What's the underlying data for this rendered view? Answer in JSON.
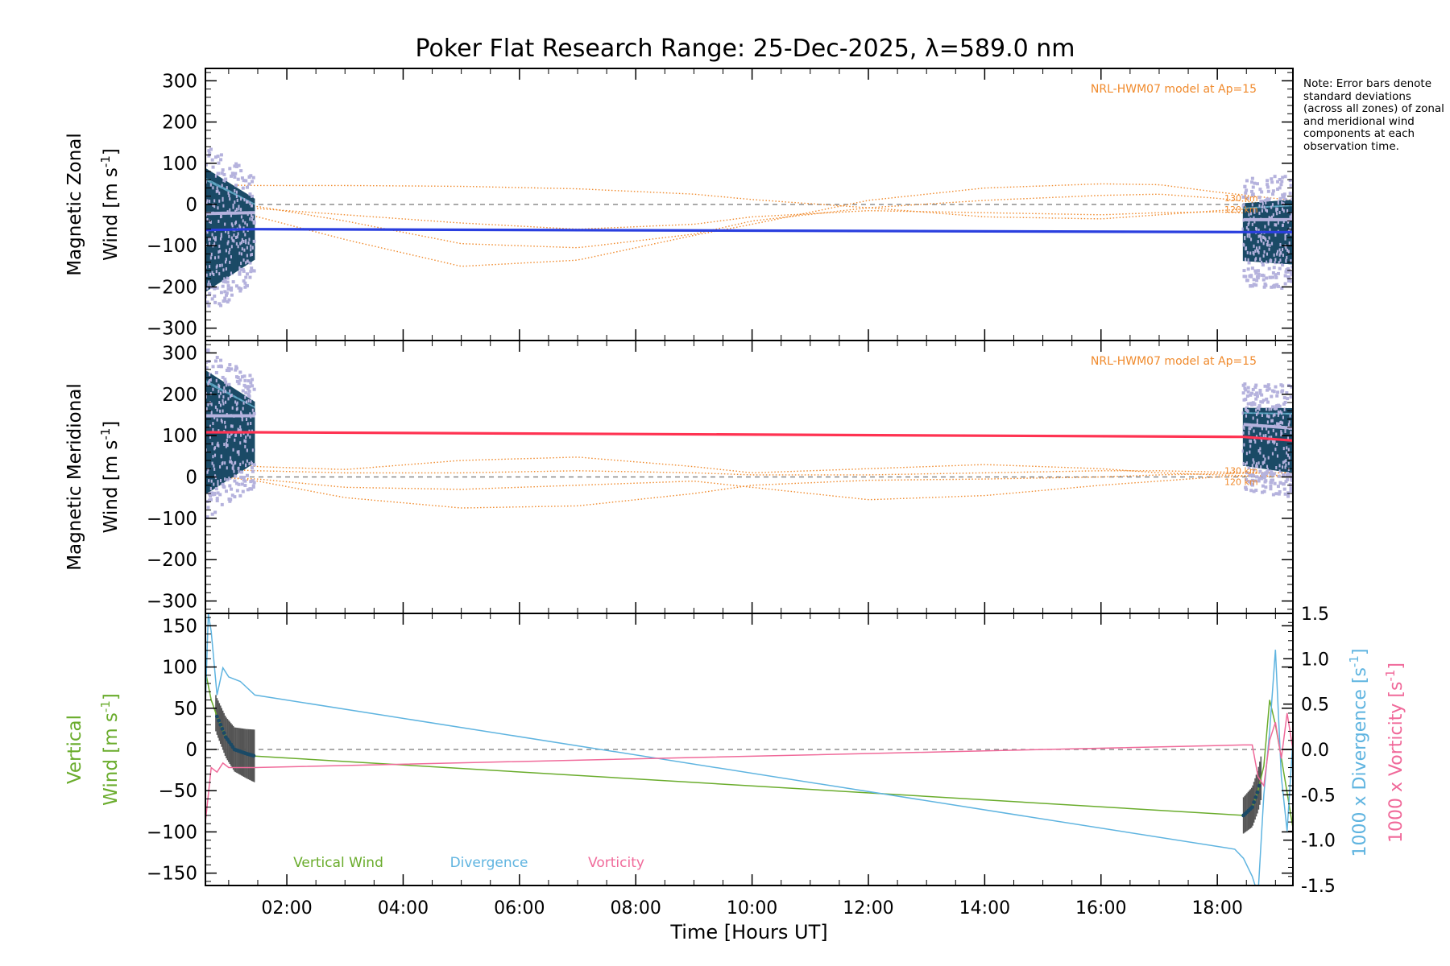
{
  "title": "Poker Flat Research Range: 25-Dec-2025, λ=589.0 nm",
  "note": "Note: Error bars denote standard deviations (across all zones) of zonal and meridional wind components at each observation time.",
  "colors": {
    "model": "#f08a2c",
    "zonal": "#2a3fdf",
    "meridional": "#ff3352",
    "vertical": "#6aac2c",
    "divergence": "#5fb4e0",
    "vorticity": "#f06a9a",
    "errorbar": "#1b4a66",
    "scatter": "#b5b2dd",
    "fine": "#7fd0ee"
  },
  "chart_data": [
    {
      "type": "line",
      "panel": "zonal",
      "ylabel_line1": "Magnetic Zonal",
      "ylabel_line2": "Wind [m s",
      "ylabel_sup": "-1",
      "ylabel_close": "]",
      "ylim": [
        -330,
        330
      ],
      "yticks": [
        300,
        200,
        100,
        0,
        -100,
        -200,
        -300
      ],
      "xlim": [
        0.6,
        19.3
      ],
      "model_label": "NRL-HWM07 model at Ap=15",
      "alt_labels": [
        "130 km",
        "120 km"
      ],
      "observation_windows": [
        [
          0.6,
          1.45
        ],
        [
          18.45,
          19.3
        ]
      ],
      "mean_wind": {
        "x": [
          0.6,
          1.45,
          18.45,
          19.3
        ],
        "y": [
          -62,
          -60,
          -67,
          -67
        ]
      },
      "model_curves": [
        {
          "x": [
            0.6,
            1.5,
            3,
            5,
            7,
            9,
            10,
            12,
            14,
            16,
            17,
            18,
            19.3
          ],
          "y": [
            48,
            46,
            46,
            44,
            38,
            25,
            12,
            -8,
            -30,
            -35,
            -25,
            -15,
            -5
          ]
        },
        {
          "x": [
            0.6,
            1.5,
            3,
            5,
            7,
            9,
            10,
            12,
            14,
            16,
            17,
            18,
            19.3
          ],
          "y": [
            -5,
            -30,
            -85,
            -150,
            -135,
            -75,
            -48,
            10,
            40,
            50,
            48,
            30,
            10
          ]
        },
        {
          "x": [
            0.6,
            1.5,
            3,
            5,
            7,
            9,
            10,
            12,
            14,
            16,
            17,
            18,
            19.3
          ],
          "y": [
            10,
            -5,
            -40,
            -95,
            -105,
            -72,
            -40,
            -8,
            10,
            22,
            25,
            15,
            -5
          ]
        },
        {
          "x": [
            0.6,
            1.5,
            3,
            5,
            7,
            9,
            10,
            12,
            14,
            16,
            17,
            18,
            19.3
          ],
          "y": [
            -10,
            -10,
            -25,
            -45,
            -60,
            -48,
            -30,
            -15,
            -20,
            -25,
            -20,
            -18,
            -25
          ]
        }
      ]
    },
    {
      "type": "line",
      "panel": "meridional",
      "ylabel_line1": "Magnetic Meridional",
      "ylabel_line2": "Wind [m s",
      "ylabel_sup": "-1",
      "ylabel_close": "]",
      "ylim": [
        -330,
        330
      ],
      "yticks": [
        300,
        200,
        100,
        0,
        -100,
        -200,
        -300
      ],
      "xlim": [
        0.6,
        19.3
      ],
      "model_label": "NRL-HWM07 model at Ap=15",
      "alt_labels": [
        "130 km",
        "120 km"
      ],
      "observation_windows": [
        [
          0.6,
          1.45
        ],
        [
          18.45,
          19.3
        ]
      ],
      "mean_wind": {
        "x": [
          0.6,
          1.45,
          18.45,
          19.3
        ],
        "y": [
          108,
          108,
          97,
          88
        ]
      },
      "model_curves": [
        {
          "x": [
            0.6,
            1.5,
            3,
            5,
            7,
            9,
            10,
            12,
            14,
            16,
            17,
            18,
            19.3
          ],
          "y": [
            35,
            25,
            18,
            40,
            48,
            25,
            10,
            20,
            30,
            20,
            10,
            5,
            0
          ]
        },
        {
          "x": [
            0.6,
            1.5,
            3,
            5,
            7,
            9,
            10,
            12,
            14,
            16,
            17,
            18,
            19.3
          ],
          "y": [
            5,
            -10,
            -50,
            -75,
            -70,
            -40,
            -20,
            -8,
            -5,
            0,
            5,
            8,
            10
          ]
        },
        {
          "x": [
            0.6,
            1.5,
            3,
            5,
            7,
            9,
            10,
            12,
            14,
            16,
            17,
            18,
            19.3
          ],
          "y": [
            0,
            -5,
            -25,
            -30,
            -20,
            -10,
            -25,
            -55,
            -45,
            -20,
            -10,
            0,
            5
          ]
        },
        {
          "x": [
            0.6,
            1.5,
            3,
            5,
            7,
            9,
            10,
            12,
            14,
            16,
            17,
            18,
            19.3
          ],
          "y": [
            20,
            15,
            10,
            10,
            15,
            10,
            5,
            5,
            10,
            15,
            15,
            12,
            10
          ]
        }
      ]
    },
    {
      "type": "line",
      "panel": "vertical",
      "ylabel_line1": "Vertical",
      "ylabel_line2": "Wind [m s",
      "ylabel_sup": "-1",
      "ylabel_close": "]",
      "ylim": [
        -165,
        165
      ],
      "yticks": [
        150,
        100,
        50,
        0,
        -50,
        -100,
        -150
      ],
      "y2lim": [
        -1.5,
        1.5
      ],
      "y2ticks": [
        "1.5",
        "1.0",
        "0.5",
        "0.0",
        "-0.5",
        "-1.0",
        "-1.5"
      ],
      "y2label_div": "1000 x Divergence [s",
      "y2label_vor": "1000 x Vorticity [s",
      "y2label_sup": "-1",
      "y2label_close": "]",
      "xlim": [
        0.6,
        19.3
      ],
      "xticks": [
        "02:00",
        "04:00",
        "06:00",
        "08:00",
        "10:00",
        "12:00",
        "14:00",
        "16:00",
        "18:00"
      ],
      "xlabel": "Time [Hours UT]",
      "legend": [
        "Vertical Wind",
        "Divergence",
        "Vorticity"
      ],
      "series": [
        {
          "name": "Vertical Wind",
          "x": [
            0.6,
            0.7,
            0.8,
            0.95,
            1.1,
            1.3,
            1.45,
            18.45,
            18.6,
            18.7,
            18.8,
            18.9,
            19.0,
            19.1,
            19.3
          ],
          "y": [
            95,
            60,
            40,
            15,
            0,
            -5,
            -8,
            -80,
            -70,
            -50,
            -20,
            60,
            30,
            -10,
            -95
          ]
        },
        {
          "name": "Divergence",
          "x": [
            0.6,
            0.65,
            0.7,
            0.8,
            0.9,
            1.0,
            1.2,
            1.45,
            18.3,
            18.45,
            18.6,
            18.7,
            18.8,
            18.9,
            19.0,
            19.1,
            19.2,
            19.3
          ],
          "y": [
            0.5,
            1.5,
            1.3,
            0.6,
            0.9,
            0.8,
            0.75,
            0.6,
            -1.1,
            -1.2,
            -1.4,
            -1.6,
            -0.5,
            0.2,
            1.1,
            -0.3,
            -0.9,
            0.1
          ]
        },
        {
          "name": "Vorticity",
          "x": [
            0.6,
            0.65,
            0.7,
            0.8,
            0.9,
            1.0,
            1.2,
            1.45,
            18.45,
            18.6,
            18.7,
            18.8,
            18.9,
            19.0,
            19.1,
            19.2,
            19.3
          ],
          "y": [
            -0.8,
            -0.5,
            -0.2,
            -0.25,
            -0.15,
            -0.2,
            -0.2,
            -0.2,
            0.05,
            0.05,
            -0.3,
            -0.4,
            0.1,
            0.3,
            -0.1,
            0.4,
            0.0
          ]
        }
      ]
    }
  ]
}
